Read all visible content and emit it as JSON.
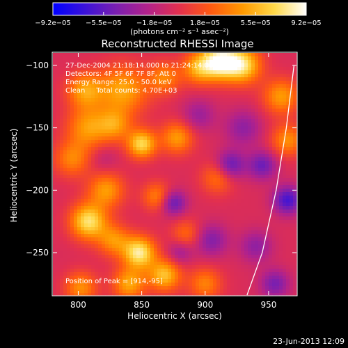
{
  "chart_data": {
    "type": "heatmap",
    "title": "Reconstructed RHESSI Image",
    "xlabel": "Heliocentric X (arcsec)",
    "ylabel": "Heliocentric Y (arcsec)",
    "xlim": [
      780,
      972
    ],
    "ylim": [
      -284,
      -90
    ],
    "x_ticks": [
      800,
      850,
      900,
      950
    ],
    "x_tick_labels": [
      "800",
      "850",
      "900",
      "950"
    ],
    "y_ticks": [
      -100,
      -150,
      -200,
      -250
    ],
    "y_tick_labels": [
      "−100",
      "−150",
      "−200",
      "−250"
    ],
    "colorbar": {
      "min": -9.2e-05,
      "max": 9.2e-05,
      "tick_labels": [
        "−9.2e−05",
        "−5.5e−05",
        "−1.8e−05",
        "1.8e−05",
        "5.5e−05",
        "9.2e−05"
      ],
      "unit_label": "(photons cm⁻² s⁻¹ asec⁻²)",
      "colors": [
        "#0000ff",
        "#3a12d8",
        "#7a1fb0",
        "#b3228a",
        "#e3304d",
        "#ff5a10",
        "#ff9a00",
        "#ffd94a",
        "#ffffff"
      ]
    },
    "annotations": [
      "27-Dec-2004 21:18:14.000 to 21:24:14.000",
      "Detectors: 4F 5F 6F 7F 8F, Att 0",
      "Energy Range: 25.0 - 50.0 keV",
      "Clean     Total counts: 4.70E+03"
    ],
    "peak_label": "Position of Peak = [914,-95]",
    "peak": [
      914,
      -95
    ],
    "limb_curve": [
      [
        933,
        -284
      ],
      [
        945,
        -250
      ],
      [
        956,
        -200
      ],
      [
        964,
        -150
      ],
      [
        970,
        -100
      ]
    ],
    "blobs": [
      {
        "x": 912,
        "y": -97,
        "amp": 1.0,
        "r": 10
      },
      {
        "x": 930,
        "y": -100,
        "amp": 0.8,
        "r": 10
      },
      {
        "x": 895,
        "y": -102,
        "amp": 0.6,
        "r": 9
      },
      {
        "x": 960,
        "y": -125,
        "amp": 0.55,
        "r": 10
      },
      {
        "x": 965,
        "y": -160,
        "amp": 0.5,
        "r": 9
      },
      {
        "x": 835,
        "y": -120,
        "amp": 0.6,
        "r": 14
      },
      {
        "x": 805,
        "y": -120,
        "amp": 0.55,
        "r": 10
      },
      {
        "x": 868,
        "y": -110,
        "amp": 0.45,
        "r": 9
      },
      {
        "x": 808,
        "y": -150,
        "amp": 0.55,
        "r": 12
      },
      {
        "x": 829,
        "y": -148,
        "amp": 0.45,
        "r": 9
      },
      {
        "x": 850,
        "y": -163,
        "amp": 0.8,
        "r": 8
      },
      {
        "x": 878,
        "y": -158,
        "amp": 0.55,
        "r": 9
      },
      {
        "x": 910,
        "y": -190,
        "amp": 0.4,
        "r": 9
      },
      {
        "x": 795,
        "y": -175,
        "amp": 0.45,
        "r": 10
      },
      {
        "x": 822,
        "y": -200,
        "amp": 0.55,
        "r": 10
      },
      {
        "x": 808,
        "y": -225,
        "amp": 0.85,
        "r": 10
      },
      {
        "x": 828,
        "y": -240,
        "amp": 0.5,
        "r": 9
      },
      {
        "x": 862,
        "y": -205,
        "amp": 0.45,
        "r": 8
      },
      {
        "x": 848,
        "y": -250,
        "amp": 0.9,
        "r": 9
      },
      {
        "x": 868,
        "y": -268,
        "amp": 0.7,
        "r": 9
      },
      {
        "x": 840,
        "y": -275,
        "amp": 0.6,
        "r": 9
      },
      {
        "x": 802,
        "y": -278,
        "amp": 0.5,
        "r": 9
      },
      {
        "x": 900,
        "y": -275,
        "amp": 0.45,
        "r": 9
      },
      {
        "x": 885,
        "y": -235,
        "amp": 0.35,
        "r": 8
      },
      {
        "x": 930,
        "y": -150,
        "amp": -0.35,
        "r": 10
      },
      {
        "x": 920,
        "y": -180,
        "amp": -0.55,
        "r": 8
      },
      {
        "x": 945,
        "y": -180,
        "amp": -0.5,
        "r": 8
      },
      {
        "x": 965,
        "y": -208,
        "amp": -0.65,
        "r": 8
      },
      {
        "x": 875,
        "y": -210,
        "amp": -0.55,
        "r": 7
      },
      {
        "x": 905,
        "y": -240,
        "amp": -0.4,
        "r": 9
      },
      {
        "x": 940,
        "y": -245,
        "amp": -0.35,
        "r": 9
      },
      {
        "x": 955,
        "y": -275,
        "amp": -0.45,
        "r": 8
      },
      {
        "x": 880,
        "y": -250,
        "amp": -0.3,
        "r": 7
      },
      {
        "x": 895,
        "y": -140,
        "amp": -0.3,
        "r": 9
      },
      {
        "x": 820,
        "y": -175,
        "amp": -0.15,
        "r": 8
      }
    ]
  },
  "footer": {
    "timestamp": "23-Jun-2013 12:09"
  }
}
